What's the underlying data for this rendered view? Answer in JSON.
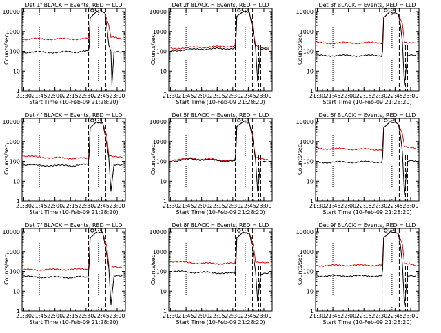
{
  "figure": {
    "x_tick_labels": [
      "21:30",
      "21:45",
      "22:00",
      "22:15",
      "22:30",
      "22:45",
      "23:00"
    ],
    "y_tick_labels": [
      "1",
      "10",
      "100",
      "1000",
      "10000"
    ],
    "ylabel": "Counts/sec",
    "xlabel": "Start Time (10-Feb-09 21:28:20)",
    "colors": {
      "events": "#000000",
      "lld": "#dd0000",
      "axes": "#000000",
      "background": "#ffffff"
    }
  },
  "chart_data": [
    {
      "type": "line",
      "title": "Det 1f BLACK = Events, RED = LLD",
      "xlabel": "Start Time (10-Feb-09 21:28:20)",
      "ylabel": "Counts/sec",
      "ylog": true,
      "ylim": [
        1,
        15000
      ],
      "xlim": [
        "21:28:20",
        "23:08"
      ],
      "series": [
        {
          "name": "Events",
          "color": "#000000",
          "points": [
            [
              "21:30",
              90
            ],
            [
              "22:15",
              92
            ],
            [
              "22:32",
              100
            ],
            [
              "22:33",
              150
            ],
            [
              "22:34",
              5000
            ],
            [
              "22:40",
              10000
            ],
            [
              "22:48",
              9000
            ],
            [
              "22:50",
              2000
            ],
            [
              "22:52",
              200
            ],
            [
              "22:54",
              100
            ],
            [
              "22:55",
              2
            ],
            [
              "22:57",
              100
            ],
            [
              "23:05",
              100
            ]
          ]
        },
        {
          "name": "LLD",
          "color": "#dd0000",
          "points": [
            [
              "21:30",
              420
            ],
            [
              "22:32",
              430
            ],
            [
              "22:33",
              600
            ],
            [
              "22:34",
              5000
            ],
            [
              "22:40",
              10000
            ],
            [
              "22:48",
              9000
            ],
            [
              "22:52",
              2000
            ],
            [
              "22:54",
              500
            ],
            [
              "23:05",
              450
            ]
          ]
        }
      ]
    },
    {
      "type": "line",
      "title": "Det 2f BLACK = Events, RED = LLD",
      "xlabel": "Start Time (10-Feb-09 21:28:20)",
      "ylabel": "Counts/sec",
      "ylog": true,
      "ylim": [
        1,
        15000
      ],
      "xlim": [
        "21:28:20",
        "23:08"
      ],
      "series": [
        {
          "name": "Events",
          "color": "#000000",
          "points": [
            [
              "21:30",
              110
            ],
            [
              "22:00",
              130
            ],
            [
              "22:32",
              140
            ],
            [
              "22:33",
              300
            ],
            [
              "22:34",
              6000
            ],
            [
              "22:40",
              10000
            ],
            [
              "22:46",
              9000
            ],
            [
              "22:49",
              1500
            ],
            [
              "22:52",
              150
            ],
            [
              "22:54",
              3
            ],
            [
              "22:57",
              130
            ],
            [
              "23:05",
              120
            ]
          ]
        },
        {
          "name": "LLD",
          "color": "#dd0000",
          "points": [
            [
              "21:30",
              140
            ],
            [
              "22:00",
              160
            ],
            [
              "22:32",
              180
            ],
            [
              "22:33",
              400
            ],
            [
              "22:34",
              6000
            ],
            [
              "22:40",
              10000
            ],
            [
              "22:46",
              9000
            ],
            [
              "22:49",
              2000
            ],
            [
              "22:52",
              200
            ],
            [
              "22:57",
              150
            ],
            [
              "23:05",
              140
            ]
          ]
        }
      ]
    },
    {
      "type": "line",
      "title": "Det 3f BLACK = Events, RED = LLD",
      "xlabel": "Start Time (10-Feb-09 21:28:20)",
      "ylabel": "Counts/sec",
      "ylog": true,
      "ylim": [
        1,
        15000
      ],
      "xlim": [
        "21:28:20",
        "23:08"
      ],
      "series": [
        {
          "name": "Events",
          "color": "#000000",
          "points": [
            [
              "21:30",
              60
            ],
            [
              "22:32",
              60
            ],
            [
              "22:33",
              100
            ],
            [
              "22:34",
              5000
            ],
            [
              "22:40",
              10000
            ],
            [
              "22:48",
              8000
            ],
            [
              "22:50",
              2500
            ],
            [
              "22:52",
              300
            ],
            [
              "22:54",
              2
            ],
            [
              "22:57",
              60
            ],
            [
              "23:05",
              60
            ]
          ]
        },
        {
          "name": "LLD",
          "color": "#dd0000",
          "points": [
            [
              "21:30",
              260
            ],
            [
              "22:32",
              270
            ],
            [
              "22:33",
              400
            ],
            [
              "22:34",
              5000
            ],
            [
              "22:40",
              10000
            ],
            [
              "22:48",
              8000
            ],
            [
              "22:52",
              2500
            ],
            [
              "22:54",
              300
            ],
            [
              "23:05",
              260
            ]
          ]
        }
      ]
    },
    {
      "type": "line",
      "title": "Det 4f BLACK = Events, RED = LLD",
      "xlabel": "Start Time (10-Feb-09 21:28:20)",
      "ylabel": "Counts/sec",
      "ylog": true,
      "ylim": [
        1,
        15000
      ],
      "xlim": [
        "21:28:20",
        "23:08"
      ],
      "series": [
        {
          "name": "Events",
          "color": "#000000",
          "points": [
            [
              "21:30",
              65
            ],
            [
              "22:15",
              60
            ],
            [
              "22:32",
              70
            ],
            [
              "22:33",
              200
            ],
            [
              "22:34",
              5000
            ],
            [
              "22:40",
              10000
            ],
            [
              "22:46",
              9000
            ],
            [
              "22:49",
              1500
            ],
            [
              "22:52",
              150
            ],
            [
              "22:54",
              3
            ],
            [
              "22:57",
              70
            ],
            [
              "23:05",
              70
            ]
          ]
        },
        {
          "name": "LLD",
          "color": "#dd0000",
          "points": [
            [
              "21:30",
              180
            ],
            [
              "22:00",
              150
            ],
            [
              "22:32",
              140
            ],
            [
              "22:33",
              300
            ],
            [
              "22:34",
              5000
            ],
            [
              "22:40",
              10000
            ],
            [
              "22:46",
              9000
            ],
            [
              "22:50",
              2000
            ],
            [
              "22:52",
              200
            ],
            [
              "23:05",
              170
            ]
          ]
        }
      ]
    },
    {
      "type": "line",
      "title": "Det 5f BLACK = Events, RED = LLD",
      "xlabel": "Start Time (10-Feb-09 21:28:20)",
      "ylabel": "Counts/sec",
      "ylog": true,
      "ylim": [
        1,
        15000
      ],
      "xlim": [
        "21:28:20",
        "23:08"
      ],
      "series": [
        {
          "name": "Events",
          "color": "#000000",
          "points": [
            [
              "21:30",
              100
            ],
            [
              "21:50",
              130
            ],
            [
              "22:32",
              100
            ],
            [
              "22:33",
              300
            ],
            [
              "22:34",
              6000
            ],
            [
              "22:40",
              10000
            ],
            [
              "22:46",
              9000
            ],
            [
              "22:49",
              1500
            ],
            [
              "22:52",
              120
            ],
            [
              "22:54",
              3
            ],
            [
              "22:57",
              100
            ],
            [
              "23:05",
              100
            ]
          ]
        },
        {
          "name": "LLD",
          "color": "#dd0000",
          "points": [
            [
              "21:30",
              120
            ],
            [
              "21:50",
              140
            ],
            [
              "22:32",
              110
            ],
            [
              "22:33",
              300
            ],
            [
              "22:34",
              6000
            ],
            [
              "22:40",
              10000
            ],
            [
              "22:46",
              9000
            ],
            [
              "22:49",
              2000
            ],
            [
              "22:52",
              150
            ],
            [
              "23:05",
              120
            ]
          ]
        }
      ]
    },
    {
      "type": "line",
      "title": "Det 6f BLACK = Events, RED = LLD",
      "xlabel": "Start Time (10-Feb-09 21:28:20)",
      "ylabel": "Counts/sec",
      "ylog": true,
      "ylim": [
        1,
        15000
      ],
      "xlim": [
        "21:28:20",
        "23:08"
      ],
      "series": [
        {
          "name": "Events",
          "color": "#000000",
          "points": [
            [
              "21:30",
              90
            ],
            [
              "22:32",
              95
            ],
            [
              "22:33",
              150
            ],
            [
              "22:34",
              5000
            ],
            [
              "22:40",
              10000
            ],
            [
              "22:48",
              8000
            ],
            [
              "22:50",
              2500
            ],
            [
              "22:52",
              300
            ],
            [
              "22:54",
              2
            ],
            [
              "22:57",
              100
            ],
            [
              "23:05",
              100
            ]
          ]
        },
        {
          "name": "LLD",
          "color": "#dd0000",
          "points": [
            [
              "21:30",
              450
            ],
            [
              "22:32",
              400
            ],
            [
              "22:33",
              600
            ],
            [
              "22:34",
              5000
            ],
            [
              "22:40",
              10000
            ],
            [
              "22:48",
              8000
            ],
            [
              "22:52",
              2500
            ],
            [
              "22:54",
              600
            ],
            [
              "23:05",
              420
            ]
          ]
        }
      ]
    },
    {
      "type": "line",
      "title": "Det 7f BLACK = Events, RED = LLD",
      "xlabel": "Start Time (10-Feb-09 21:28:20)",
      "ylabel": "Counts/sec",
      "ylog": true,
      "ylim": [
        1,
        15000
      ],
      "xlim": [
        "21:28:20",
        "23:08"
      ],
      "series": [
        {
          "name": "Events",
          "color": "#000000",
          "points": [
            [
              "21:30",
              55
            ],
            [
              "22:15",
              50
            ],
            [
              "22:32",
              55
            ],
            [
              "22:33",
              200
            ],
            [
              "22:34",
              5000
            ],
            [
              "22:40",
              10000
            ],
            [
              "22:46",
              9000
            ],
            [
              "22:49",
              1500
            ],
            [
              "22:52",
              150
            ],
            [
              "22:54",
              2
            ],
            [
              "22:57",
              60
            ],
            [
              "23:05",
              60
            ]
          ]
        },
        {
          "name": "LLD",
          "color": "#dd0000",
          "points": [
            [
              "21:30",
              120
            ],
            [
              "22:32",
              130
            ],
            [
              "22:33",
              300
            ],
            [
              "22:34",
              5000
            ],
            [
              "22:40",
              10000
            ],
            [
              "22:46",
              9000
            ],
            [
              "22:50",
              2000
            ],
            [
              "22:52",
              200
            ],
            [
              "23:05",
              150
            ]
          ]
        }
      ]
    },
    {
      "type": "line",
      "title": "Det 8f BLACK = Events, RED = LLD",
      "xlabel": "Start Time (10-Feb-09 21:28:20)",
      "ylabel": "Counts/sec",
      "ylog": true,
      "ylim": [
        1,
        15000
      ],
      "xlim": [
        "21:28:20",
        "23:08"
      ],
      "series": [
        {
          "name": "Events",
          "color": "#000000",
          "points": [
            [
              "21:30",
              100
            ],
            [
              "22:32",
              80
            ],
            [
              "22:33",
              200
            ],
            [
              "22:34",
              5000
            ],
            [
              "22:40",
              10000
            ],
            [
              "22:46",
              9000
            ],
            [
              "22:49",
              1500
            ],
            [
              "22:52",
              100
            ],
            [
              "22:54",
              3
            ],
            [
              "22:57",
              80
            ],
            [
              "23:05",
              90
            ]
          ]
        },
        {
          "name": "LLD",
          "color": "#dd0000",
          "points": [
            [
              "21:30",
              320
            ],
            [
              "22:00",
              260
            ],
            [
              "22:32",
              250
            ],
            [
              "22:33",
              500
            ],
            [
              "22:34",
              5000
            ],
            [
              "22:40",
              10000
            ],
            [
              "22:46",
              9000
            ],
            [
              "22:50",
              2000
            ],
            [
              "22:52",
              300
            ],
            [
              "23:05",
              300
            ]
          ]
        }
      ]
    },
    {
      "type": "line",
      "title": "Det 9f BLACK = Events, RED = LLD",
      "xlabel": "Start Time (10-Feb-09 21:28:20)",
      "ylabel": "Counts/sec",
      "ylog": true,
      "ylim": [
        1,
        15000
      ],
      "xlim": [
        "21:28:20",
        "23:08"
      ],
      "series": [
        {
          "name": "Events",
          "color": "#000000",
          "points": [
            [
              "21:30",
              60
            ],
            [
              "22:32",
              60
            ],
            [
              "22:33",
              120
            ],
            [
              "22:34",
              5000
            ],
            [
              "22:40",
              10000
            ],
            [
              "22:48",
              8000
            ],
            [
              "22:50",
              2500
            ],
            [
              "22:52",
              250
            ],
            [
              "22:54",
              2
            ],
            [
              "22:57",
              60
            ],
            [
              "23:05",
              60
            ]
          ]
        },
        {
          "name": "LLD",
          "color": "#dd0000",
          "points": [
            [
              "21:30",
              200
            ],
            [
              "22:32",
              210
            ],
            [
              "22:33",
              400
            ],
            [
              "22:34",
              5000
            ],
            [
              "22:40",
              10000
            ],
            [
              "22:48",
              8000
            ],
            [
              "22:52",
              2500
            ],
            [
              "22:54",
              250
            ],
            [
              "23:05",
              200
            ]
          ]
        }
      ]
    }
  ]
}
